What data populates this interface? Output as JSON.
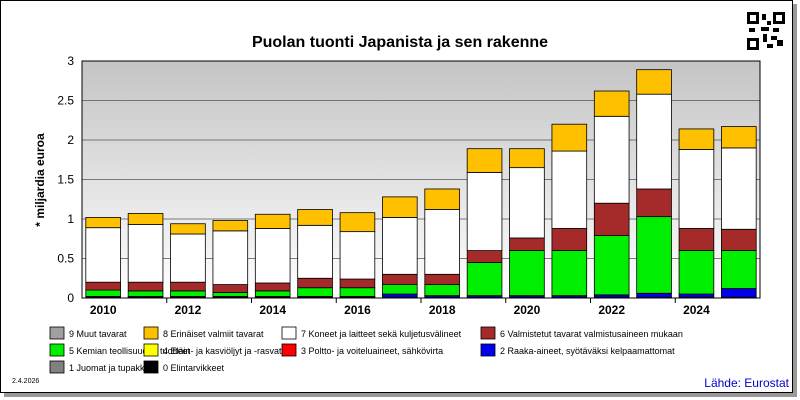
{
  "chart_data": {
    "type": "bar",
    "stacked": true,
    "title": "Puolan tuonti Japanista ja sen rakenne",
    "ylabel": "* miljardia euroa",
    "xlabel": "",
    "ylim": [
      0,
      3
    ],
    "yticks": [
      "0",
      "0.5",
      "1",
      "1.5",
      "2",
      "2.5",
      "3"
    ],
    "xticks": [
      "2010",
      "2012",
      "2014",
      "2016",
      "2018",
      "2020",
      "2022",
      "2024"
    ],
    "categories": [
      "2010",
      "2011",
      "2012",
      "2013",
      "2014",
      "2015",
      "2016",
      "2017",
      "2018",
      "2019",
      "2020",
      "2021",
      "2022",
      "2023",
      "2024",
      "2025"
    ],
    "grid": true,
    "legend_position": "bottom",
    "series": [
      {
        "name": "0 Elintarvikkeet",
        "color": "#000000",
        "values": [
          0.01,
          0.01,
          0.01,
          0.01,
          0.01,
          0.01,
          0.01,
          0.01,
          0.01,
          0.01,
          0.01,
          0.01,
          0.01,
          0.01,
          0.01,
          0.01
        ]
      },
      {
        "name": "1 Juomat ja tupakka",
        "color": "#808080",
        "values": [
          0,
          0,
          0,
          0,
          0,
          0,
          0,
          0,
          0,
          0,
          0,
          0,
          0,
          0,
          0,
          0
        ]
      },
      {
        "name": "2 Raaka-aineet, syötäväksi kelpaamattomat",
        "color": "#0000ee",
        "values": [
          0.01,
          0.01,
          0.01,
          0.01,
          0.01,
          0.01,
          0.01,
          0.04,
          0.02,
          0.02,
          0.02,
          0.02,
          0.03,
          0.05,
          0.04,
          0.11
        ]
      },
      {
        "name": "3 Poltto- ja voiteluaineet, sähkövirta",
        "color": "#ff0000",
        "values": [
          0,
          0,
          0,
          0,
          0,
          0,
          0,
          0,
          0,
          0,
          0,
          0,
          0,
          0,
          0,
          0
        ]
      },
      {
        "name": "5 Kemian teollisuuden tuotteet",
        "color": "#00ee00",
        "values": [
          0.08,
          0.07,
          0.07,
          0.05,
          0.07,
          0.11,
          0.11,
          0.12,
          0.14,
          0.42,
          0.57,
          0.57,
          0.75,
          0.97,
          0.55,
          0.48
        ]
      },
      {
        "name": "6 Valmistetut tavarat valmistusaineen mukaan",
        "color": "#a52a2a",
        "values": [
          0.1,
          0.11,
          0.11,
          0.1,
          0.1,
          0.12,
          0.11,
          0.13,
          0.13,
          0.15,
          0.16,
          0.28,
          0.41,
          0.35,
          0.28,
          0.27
        ]
      },
      {
        "name": "7 Koneet ja laitteet sekä kuljetusvälineet",
        "color": "#ffffff",
        "values": [
          0.69,
          0.73,
          0.61,
          0.68,
          0.69,
          0.67,
          0.6,
          0.72,
          0.82,
          0.99,
          0.89,
          0.98,
          1.1,
          1.2,
          1.0,
          1.03
        ]
      },
      {
        "name": "8 Erinäiset valmiit tavarat",
        "color": "#ffc000",
        "values": [
          0.13,
          0.14,
          0.13,
          0.13,
          0.18,
          0.2,
          0.24,
          0.26,
          0.26,
          0.3,
          0.24,
          0.34,
          0.32,
          0.31,
          0.26,
          0.27
        ]
      },
      {
        "name": "4 Eläin- ja kasviöljyt ja -rasvat",
        "color": "#ffff00",
        "values": [
          0,
          0,
          0,
          0,
          0,
          0,
          0,
          0,
          0,
          0,
          0,
          0,
          0,
          0,
          0,
          0
        ]
      },
      {
        "name": "9 Muut tavarat",
        "color": "#a0a0a0",
        "values": [
          0,
          0,
          0,
          0,
          0,
          0,
          0,
          0,
          0,
          0,
          0,
          0,
          0,
          0,
          0,
          0
        ]
      }
    ],
    "legend_order": [
      "9 Muut tavarat",
      "8 Erinäiset valmiit tavarat",
      "7 Koneet ja laitteet sekä kuljetusvälineet",
      "6 Valmistetut tavarat valmistusaineen mukaan",
      "5 Kemian teollisuuden tuotteet",
      "4 Eläin- ja kasviöljyt ja -rasvat",
      "3 Poltto- ja voiteluaineet, sähkövirta",
      "2 Raaka-aineet, syötäväksi kelpaamattomat",
      "1 Juomat ja tupakka",
      "0 Elintarvikkeet"
    ]
  },
  "footer": {
    "date": "2.4.2026",
    "source": "Lähde: Eurostat"
  },
  "colors": {
    "plot_gradient_top": "#c8c8c8",
    "plot_gradient_bottom": "#ffffff",
    "source_text": "#0000cc"
  }
}
